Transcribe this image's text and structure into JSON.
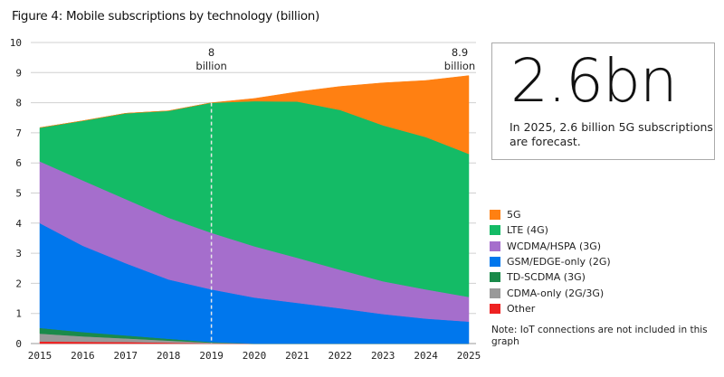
{
  "title": "Figure 4: Mobile subscriptions by technology (billion)",
  "callout": {
    "big_number": "2.6bn",
    "text": "In 2025, 2.6 billion 5G subscriptions are forecast."
  },
  "note": "Note: IoT connections are not included in this graph",
  "chart_data": {
    "type": "area",
    "stacked": true,
    "title": "Figure 4: Mobile subscriptions by technology (billion)",
    "xlabel": "",
    "ylabel": "",
    "x": [
      2015,
      2016,
      2017,
      2018,
      2019,
      2020,
      2021,
      2022,
      2023,
      2024,
      2025
    ],
    "ylim": [
      0,
      10
    ],
    "yticks": [
      0,
      1,
      2,
      3,
      4,
      5,
      6,
      7,
      8,
      9,
      10
    ],
    "grid": true,
    "legend_position": "right",
    "series": [
      {
        "name": "Other",
        "color": "#ee2222",
        "values": [
          0.07,
          0.06,
          0.05,
          0.03,
          0.01,
          0,
          0,
          0,
          0,
          0,
          0
        ]
      },
      {
        "name": "CDMA-only (2G/3G)",
        "color": "#999999",
        "values": [
          0.26,
          0.18,
          0.12,
          0.07,
          0.02,
          0,
          0,
          0,
          0,
          0,
          0
        ]
      },
      {
        "name": "TD-SCDMA (3G)",
        "color": "#1a8a4a",
        "values": [
          0.19,
          0.14,
          0.1,
          0.06,
          0.02,
          0,
          0,
          0,
          0,
          0,
          0
        ]
      },
      {
        "name": "GSM/EDGE-only (2G)",
        "color": "#0077ed",
        "values": [
          3.48,
          2.87,
          2.4,
          1.97,
          1.75,
          1.53,
          1.35,
          1.17,
          0.98,
          0.83,
          0.73
        ]
      },
      {
        "name": "WCDMA/HSPA (3G)",
        "color": "#a56ecc",
        "values": [
          2.05,
          2.17,
          2.13,
          2.05,
          1.88,
          1.7,
          1.5,
          1.28,
          1.09,
          0.97,
          0.82
        ]
      },
      {
        "name": "LTE (4G)",
        "color": "#14bb66",
        "values": [
          1.12,
          1.98,
          2.85,
          3.55,
          4.32,
          4.82,
          5.19,
          5.31,
          5.18,
          5.06,
          4.75
        ]
      },
      {
        "name": "5G",
        "color": "#ff8012",
        "values": [
          0,
          0,
          0,
          0,
          0,
          0.09,
          0.32,
          0.78,
          1.41,
          1.88,
          2.6
        ]
      }
    ],
    "legend_order": [
      "5G",
      "LTE (4G)",
      "WCDMA/HSPA (3G)",
      "GSM/EDGE-only (2G)",
      "TD-SCDMA (3G)",
      "CDMA-only (2G/3G)",
      "Other"
    ],
    "annotations": [
      {
        "x": 2019,
        "value": 8,
        "line1": "8",
        "line2": "billion",
        "dashed_line": true
      },
      {
        "x": 2025,
        "value": 8.9,
        "line1": "8.9",
        "line2": "billion",
        "dashed_line": false
      }
    ]
  }
}
